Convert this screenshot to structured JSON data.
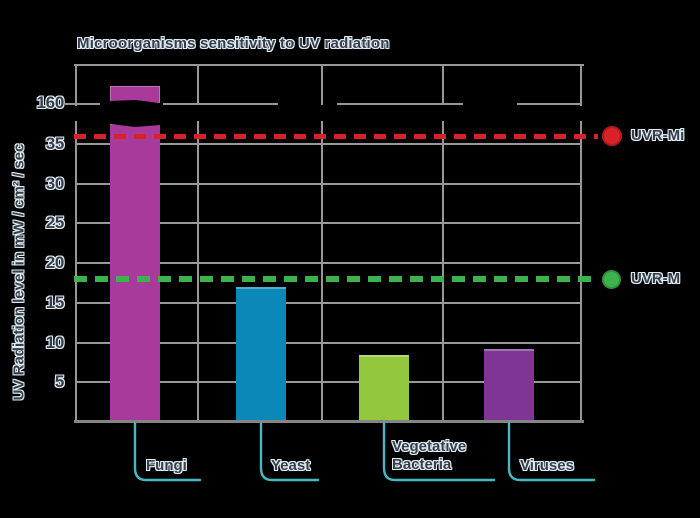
{
  "page": {
    "background": "#000000"
  },
  "chart_data": {
    "type": "bar",
    "title": "Microorganisms sensitivity to UV radiation",
    "ylabel": "UV Radiation level in mW / cm² / sec",
    "xlabel": "",
    "categories": [
      "Fungi",
      "Yeast",
      "Vegetative Bacteria",
      "Viruses"
    ],
    "values": [
      165,
      17,
      8.4,
      9.2
    ],
    "values_note": "Fungi exceeds the visible axis; its bar is drawn broken, resuming above the 160 tick",
    "bar_colors": [
      "#a83a9b",
      "#0b87b8",
      "#93c83e",
      "#7f3596"
    ],
    "yticks": [
      5,
      10,
      15,
      20,
      25,
      30,
      35
    ],
    "axis_break_tick_label": "160",
    "ylim": [
      0,
      40
    ],
    "grid": true,
    "legend_position": "right",
    "reference_lines": [
      {
        "label": "UVR-Mi",
        "value": 36,
        "color": "#da2128",
        "style": "dashed",
        "marker": "red-circle"
      },
      {
        "label": "UVR-M",
        "value": 18,
        "color": "#3cb24c",
        "style": "dashed",
        "marker": "green-circle"
      }
    ]
  },
  "colors": {
    "callout": "#47b7c4",
    "grid": "#989898",
    "text_fill": "#3c3c46",
    "text_outline": "#dceef7"
  }
}
